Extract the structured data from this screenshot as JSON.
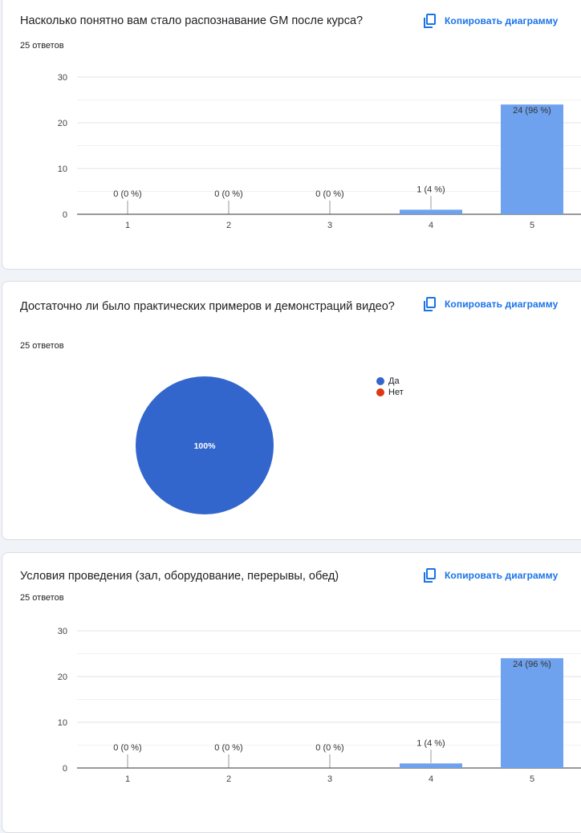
{
  "colors": {
    "bar": "#6fa2ee",
    "pie_yes": "#3366cc",
    "pie_no": "#dc3912",
    "link": "#1a73e8"
  },
  "copy_label": "Копировать диаграмму",
  "questions": [
    {
      "title": "Насколько понятно вам стало распознавание GM после курса?",
      "count_label": "25 ответов"
    },
    {
      "title": "Достаточно ли было практических примеров и демонстраций видео?",
      "count_label": "25 ответов"
    },
    {
      "title": "Условия проведения (зал, оборудование, перерывы, обед)",
      "count_label": "25 ответов"
    }
  ],
  "chart_data": [
    {
      "type": "bar",
      "categories": [
        "1",
        "2",
        "3",
        "4",
        "5"
      ],
      "values": [
        0,
        0,
        0,
        1,
        24
      ],
      "data_labels": [
        "0 (0 %)",
        "0 (0 %)",
        "0 (0 %)",
        "1 (4 %)",
        "24 (96 %)"
      ],
      "yticks": [
        "0",
        "10",
        "20",
        "30"
      ],
      "ylim": [
        0,
        30
      ],
      "grid": true
    },
    {
      "type": "pie",
      "labels": [
        "Да",
        "Нет"
      ],
      "values": [
        100,
        0
      ],
      "slice_label": "100%",
      "legend": "right"
    },
    {
      "type": "bar",
      "categories": [
        "1",
        "2",
        "3",
        "4",
        "5"
      ],
      "values": [
        0,
        0,
        0,
        1,
        24
      ],
      "data_labels": [
        "0 (0 %)",
        "0 (0 %)",
        "0 (0 %)",
        "1 (4 %)",
        "24 (96 %)"
      ],
      "yticks": [
        "0",
        "10",
        "20",
        "30"
      ],
      "ylim": [
        0,
        30
      ],
      "grid": true
    }
  ]
}
